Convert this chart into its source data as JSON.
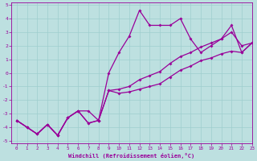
{
  "xlabel": "Windchill (Refroidissement éolien,°C)",
  "xlim": [
    -0.5,
    23
  ],
  "ylim": [
    -5.2,
    5.2
  ],
  "xticks": [
    0,
    1,
    2,
    3,
    4,
    5,
    6,
    7,
    8,
    9,
    10,
    11,
    12,
    13,
    14,
    15,
    16,
    17,
    18,
    19,
    20,
    21,
    22,
    23
  ],
  "yticks": [
    -5,
    -4,
    -3,
    -2,
    -1,
    0,
    1,
    2,
    3,
    4,
    5
  ],
  "background_color": "#bde0e0",
  "grid_color": "#9ecece",
  "line_color": "#990099",
  "line1_y": [
    -3.5,
    -4.0,
    -4.5,
    -3.8,
    -4.6,
    -3.3,
    -2.8,
    -2.8,
    -3.5,
    -1.3,
    -1.5,
    -1.4,
    -1.2,
    -1.0,
    -0.8,
    -0.3,
    0.2,
    0.5,
    0.9,
    1.1,
    1.4,
    1.6,
    1.5,
    2.2
  ],
  "line2_y": [
    -3.5,
    -4.0,
    -4.5,
    -3.8,
    -4.6,
    -3.3,
    -2.8,
    -3.7,
    -3.5,
    0.0,
    1.5,
    2.7,
    4.6,
    3.5,
    3.5,
    3.5,
    4.0,
    2.5,
    1.5,
    2.0,
    2.5,
    3.5,
    1.5,
    2.2
  ],
  "line3_y": [
    -3.5,
    -4.0,
    -4.5,
    -3.8,
    -4.6,
    -3.3,
    -2.8,
    -3.7,
    -3.5,
    -1.3,
    -1.2,
    -1.0,
    -0.5,
    -0.2,
    0.1,
    0.7,
    1.2,
    1.5,
    1.9,
    2.2,
    2.5,
    3.0,
    2.0,
    2.2
  ]
}
